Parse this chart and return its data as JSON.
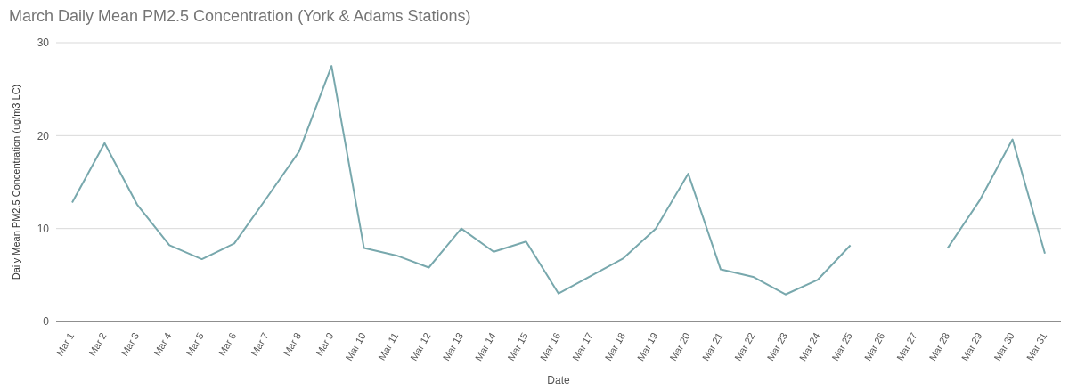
{
  "chart_data": {
    "type": "line",
    "title": "March Daily Mean PM2.5 Concentration (York & Adams Stations)",
    "xlabel": "Date",
    "ylabel": "Daily Mean PM2.5 Concentration (ug/m3 LC)",
    "categories": [
      "Mar 1",
      "Mar 2",
      "Mar 3",
      "Mar 4",
      "Mar 5",
      "Mar 6",
      "Mar 7",
      "Mar 8",
      "Mar 9",
      "Mar 10",
      "Mar 11",
      "Mar 12",
      "Mar 13",
      "Mar 14",
      "Mar 15",
      "Mar 16",
      "Mar 17",
      "Mar 18",
      "Mar 19",
      "Mar 20",
      "Mar 21",
      "Mar 22",
      "Mar 23",
      "Mar 24",
      "Mar 25",
      "Mar 26",
      "Mar 27",
      "Mar 28",
      "Mar 29",
      "Mar 30",
      "Mar 31"
    ],
    "series": [
      {
        "color": "#78a8ad",
        "values": [
          12.8,
          19.2,
          12.6,
          8.2,
          6.7,
          8.4,
          13.3,
          18.3,
          27.5,
          7.9,
          7.1,
          5.8,
          10.0,
          7.5,
          8.6,
          3.0,
          4.9,
          6.8,
          10.0,
          15.9,
          5.6,
          4.8,
          2.9,
          4.5,
          8.2,
          null,
          null,
          7.9,
          13.1,
          19.6,
          7.3
        ]
      }
    ],
    "ylim": [
      0,
      30
    ],
    "yticks": [
      0,
      10,
      20,
      30
    ],
    "grid": "y",
    "marker": "none",
    "line_style": "solid"
  }
}
